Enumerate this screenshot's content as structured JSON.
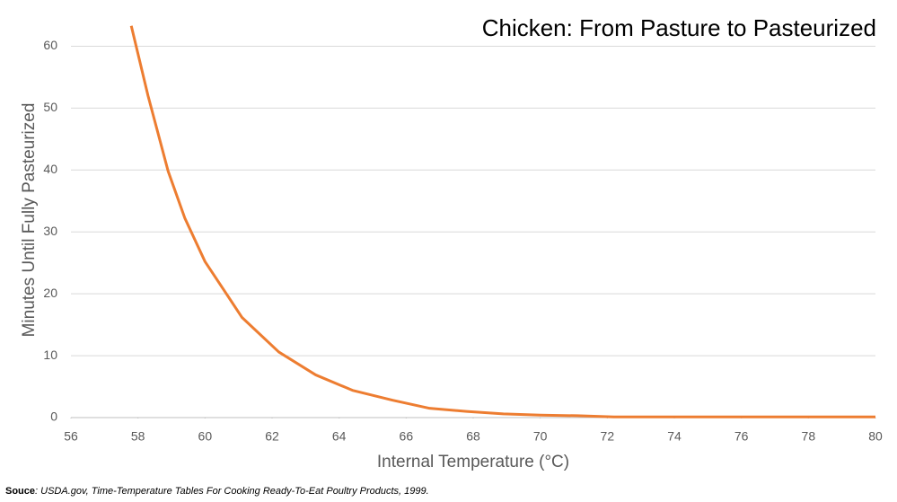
{
  "chart_data": {
    "type": "line",
    "title": "Chicken: From Pasture to Pasteurized",
    "x_label": "Internal Temperature (°C)",
    "y_label": "Minutes Until Fully Pasteurized",
    "x": [
      57.8,
      58.3,
      58.9,
      59.4,
      60.0,
      60.6,
      61.1,
      62.2,
      63.3,
      64.4,
      65.6,
      66.7,
      67.8,
      68.9,
      70.0,
      71.1,
      72.2,
      73.3,
      74.4,
      76.0,
      78.0,
      80.0
    ],
    "series": [
      {
        "name": "Minutes",
        "color": "#ed7d31",
        "values": [
          63.3,
          52,
          39.8,
          32.2,
          25.2,
          20.3,
          16.2,
          10.6,
          6.9,
          4.4,
          2.8,
          1.5,
          1.0,
          0.6,
          0.4,
          0.3,
          0.1,
          0.1,
          0.1,
          0.1,
          0.1,
          0.1
        ]
      }
    ],
    "xlim": [
      56,
      80
    ],
    "xticks": [
      56,
      58,
      60,
      62,
      64,
      66,
      68,
      70,
      72,
      74,
      76,
      78,
      80
    ],
    "ylim": [
      0,
      65
    ],
    "yticks": [
      0,
      10,
      20,
      30,
      40,
      50,
      60
    ],
    "grid": true,
    "source": {
      "label": "Souce",
      "text": ": USDA.gov, Time-Temperature Tables For Cooking Ready-To-Eat Poultry Products, 1999."
    }
  }
}
